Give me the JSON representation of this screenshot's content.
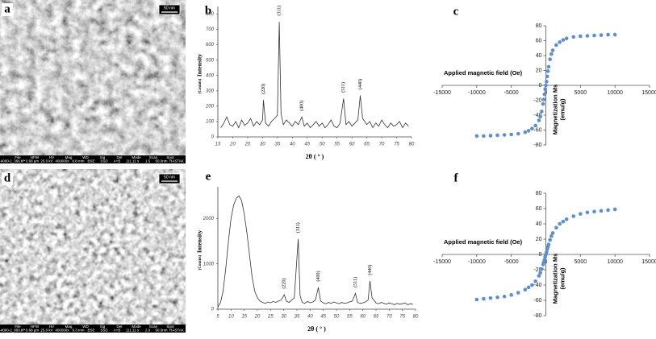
{
  "images": [
    {
      "label": "a",
      "scale_bar": "50 nm",
      "info_fields": [
        "File",
        "HFW",
        "HV",
        "Mag",
        "WD",
        "Sig",
        "Det",
        "Mode",
        "Scan",
        "Spot"
      ],
      "info_values": [
        "6-4000-2_366.tif*",
        "0.68 µm",
        "25.0 kV",
        "400000x",
        "8.8 mm",
        "BSE",
        "SSD",
        "A+B",
        "111.11 s",
        "1.5",
        "50.0nm",
        "RASTAK"
      ]
    },
    {
      "label": "d",
      "scale_bar": "50 nm",
      "info_fields": [
        "File",
        "HFW",
        "HV",
        "Mag",
        "WD",
        "Sig",
        "Det",
        "Mode",
        "Scan",
        "Spot"
      ],
      "info_values": [
        "6-4000-2_860.tif*",
        "0.68 µm",
        "25.0 kV",
        "400000x",
        "9.3 mm",
        "BSE",
        "SSD",
        "A+B",
        "111.11 s",
        "2.0",
        "50.0nm",
        "RASTAK"
      ]
    }
  ],
  "chart_data": [
    {
      "type": "line",
      "panel_label": "b",
      "x_label": "2θ ( ° )",
      "y_label": "Intensity",
      "y_label_unit": "(Counts)",
      "color": "#333333",
      "x": [
        16,
        17,
        18,
        19,
        20,
        21,
        22,
        23,
        24,
        25,
        26,
        27,
        28,
        29,
        30,
        30.3,
        31,
        32,
        33,
        34,
        35,
        35.6,
        36.2,
        37,
        38,
        39,
        40,
        41,
        42,
        43.2,
        44,
        45,
        46,
        47,
        48,
        49,
        50,
        51,
        52,
        53,
        54,
        55,
        56,
        57.2,
        58,
        59,
        60,
        61,
        62,
        62.8,
        63.6,
        65,
        66,
        67,
        68,
        69,
        70,
        71,
        72,
        73,
        74,
        75,
        76,
        77,
        78,
        79
      ],
      "values": [
        60,
        90,
        130,
        80,
        70,
        100,
        60,
        110,
        75,
        90,
        120,
        70,
        100,
        80,
        110,
        240,
        90,
        70,
        100,
        120,
        140,
        750,
        150,
        80,
        110,
        90,
        70,
        100,
        80,
        130,
        70,
        90,
        60,
        80,
        100,
        70,
        90,
        60,
        80,
        110,
        70,
        60,
        90,
        250,
        80,
        100,
        70,
        90,
        110,
        270,
        120,
        80,
        100,
        60,
        90,
        70,
        110,
        80,
        60,
        90,
        70,
        80,
        100,
        60,
        90,
        70
      ],
      "annotations": [
        {
          "text": "(220)",
          "x": 30.3
        },
        {
          "text": "(311)",
          "x": 35.6
        },
        {
          "text": "(400)",
          "x": 43.2
        },
        {
          "text": "(511)",
          "x": 57.2
        },
        {
          "text": "(440)",
          "x": 62.8
        }
      ],
      "xlim": [
        15,
        80
      ],
      "xticks": [
        15,
        20,
        25,
        30,
        35,
        40,
        45,
        50,
        55,
        60,
        65,
        70,
        75,
        80
      ],
      "ylim": [
        0,
        850
      ],
      "yticks": [
        0,
        100,
        200,
        300,
        400,
        500,
        600,
        700,
        800
      ]
    },
    {
      "type": "scatter",
      "panel_label": "c",
      "x_label": "Applied magnetic field (Oe)",
      "y_label_lines": [
        "Magnetization Ms",
        "(emu/g)"
      ],
      "color": "#5b8fd0",
      "axes_cross_origin": true,
      "x": [
        -10000,
        -9000,
        -8000,
        -7000,
        -6000,
        -5000,
        -4000,
        -3000,
        -2500,
        -2000,
        -1500,
        -1000,
        -800,
        -600,
        -400,
        -300,
        -200,
        -100,
        0,
        100,
        200,
        300,
        400,
        600,
        800,
        1000,
        1500,
        2000,
        2500,
        3000,
        4000,
        5000,
        6000,
        7000,
        8000,
        9000,
        10000
      ],
      "values": [
        -68,
        -68,
        -67.5,
        -67,
        -66.5,
        -66,
        -65,
        -63,
        -61,
        -58,
        -54,
        -47,
        -42,
        -35,
        -25,
        -19,
        -12,
        -5,
        0,
        5,
        12,
        19,
        25,
        35,
        42,
        47,
        54,
        58,
        61,
        63,
        65,
        66,
        66.5,
        67,
        67.5,
        68,
        68
      ],
      "xlim": [
        -15000,
        15000
      ],
      "xticks": [
        -15000,
        -10000,
        -5000,
        0,
        5000,
        10000,
        15000
      ],
      "ylim": [
        -80,
        80
      ],
      "yticks": [
        -80,
        -60,
        -40,
        -20,
        0,
        20,
        40,
        60,
        80
      ]
    },
    {
      "type": "line",
      "panel_label": "e",
      "x_label": "2θ ( ° )",
      "y_label": "Intensity",
      "y_label_unit": "(Counts)",
      "color": "#333333",
      "x": [
        5,
        6,
        7,
        8,
        9,
        10,
        11,
        12,
        13,
        14,
        15,
        16,
        17,
        18,
        19,
        20,
        21,
        22,
        23,
        24,
        25,
        26,
        27,
        28,
        29,
        30.2,
        31,
        32,
        33,
        34,
        35.5,
        36.2,
        37,
        38,
        39,
        40,
        41,
        42,
        43.1,
        44,
        45,
        46,
        47,
        48,
        49,
        50,
        51,
        52,
        53,
        54,
        55,
        56,
        57.2,
        58,
        59,
        60,
        61,
        62,
        62.7,
        63.5,
        65,
        66,
        67,
        68,
        69,
        70,
        71,
        72,
        73,
        74,
        75,
        76,
        77,
        78,
        79
      ],
      "values": [
        50,
        150,
        400,
        900,
        1500,
        2000,
        2300,
        2450,
        2500,
        2400,
        2100,
        1700,
        1200,
        700,
        400,
        250,
        180,
        150,
        130,
        160,
        140,
        170,
        150,
        180,
        200,
        320,
        180,
        150,
        200,
        250,
        1550,
        300,
        150,
        130,
        170,
        140,
        160,
        200,
        480,
        180,
        140,
        120,
        150,
        130,
        160,
        140,
        120,
        150,
        130,
        140,
        160,
        180,
        350,
        150,
        130,
        140,
        160,
        200,
        620,
        250,
        140,
        120,
        150,
        130,
        110,
        140,
        120,
        100,
        130,
        110,
        120,
        140,
        100,
        120,
        110
      ],
      "annotations": [
        {
          "text": "(220)",
          "x": 30.2
        },
        {
          "text": "(311)",
          "x": 35.5
        },
        {
          "text": "(400)",
          "x": 43.1
        },
        {
          "text": "(511)",
          "x": 57.2
        },
        {
          "text": "(440)",
          "x": 62.7
        }
      ],
      "xlim": [
        5,
        80
      ],
      "xticks": [
        5,
        10,
        15,
        20,
        25,
        30,
        35,
        40,
        45,
        50,
        55,
        60,
        65,
        70,
        75,
        80
      ],
      "ylim": [
        0,
        2700
      ],
      "yticks": [
        0,
        1000,
        2000
      ]
    },
    {
      "type": "scatter",
      "panel_label": "f",
      "x_label": "Applied magnetic field (Oe)",
      "y_label_lines": [
        "Magnetization Ms",
        "(emu/g)"
      ],
      "color": "#5b8fd0",
      "axes_cross_origin": true,
      "x": [
        -10000,
        -9000,
        -8000,
        -7000,
        -6000,
        -5000,
        -4000,
        -3000,
        -2500,
        -2000,
        -1500,
        -1000,
        -800,
        -600,
        -400,
        -300,
        -200,
        -100,
        0,
        100,
        200,
        300,
        400,
        600,
        800,
        1000,
        1500,
        2000,
        2500,
        3000,
        4000,
        5000,
        6000,
        7000,
        8000,
        9000,
        10000
      ],
      "values": [
        -59,
        -58,
        -57,
        -56,
        -55,
        -53,
        -50,
        -46,
        -43,
        -40,
        -35,
        -28,
        -24,
        -19,
        -13,
        -10,
        -7,
        -3,
        0,
        3,
        7,
        10,
        13,
        19,
        24,
        28,
        35,
        40,
        43,
        46,
        50,
        53,
        55,
        56,
        57,
        58,
        59
      ],
      "xlim": [
        -15000,
        15000
      ],
      "xticks": [
        -15000,
        -10000,
        -5000,
        0,
        5000,
        10000,
        15000
      ],
      "ylim": [
        -80,
        80
      ],
      "yticks": [
        -80,
        -60,
        -40,
        -20,
        0,
        20,
        40,
        60,
        80
      ]
    }
  ]
}
